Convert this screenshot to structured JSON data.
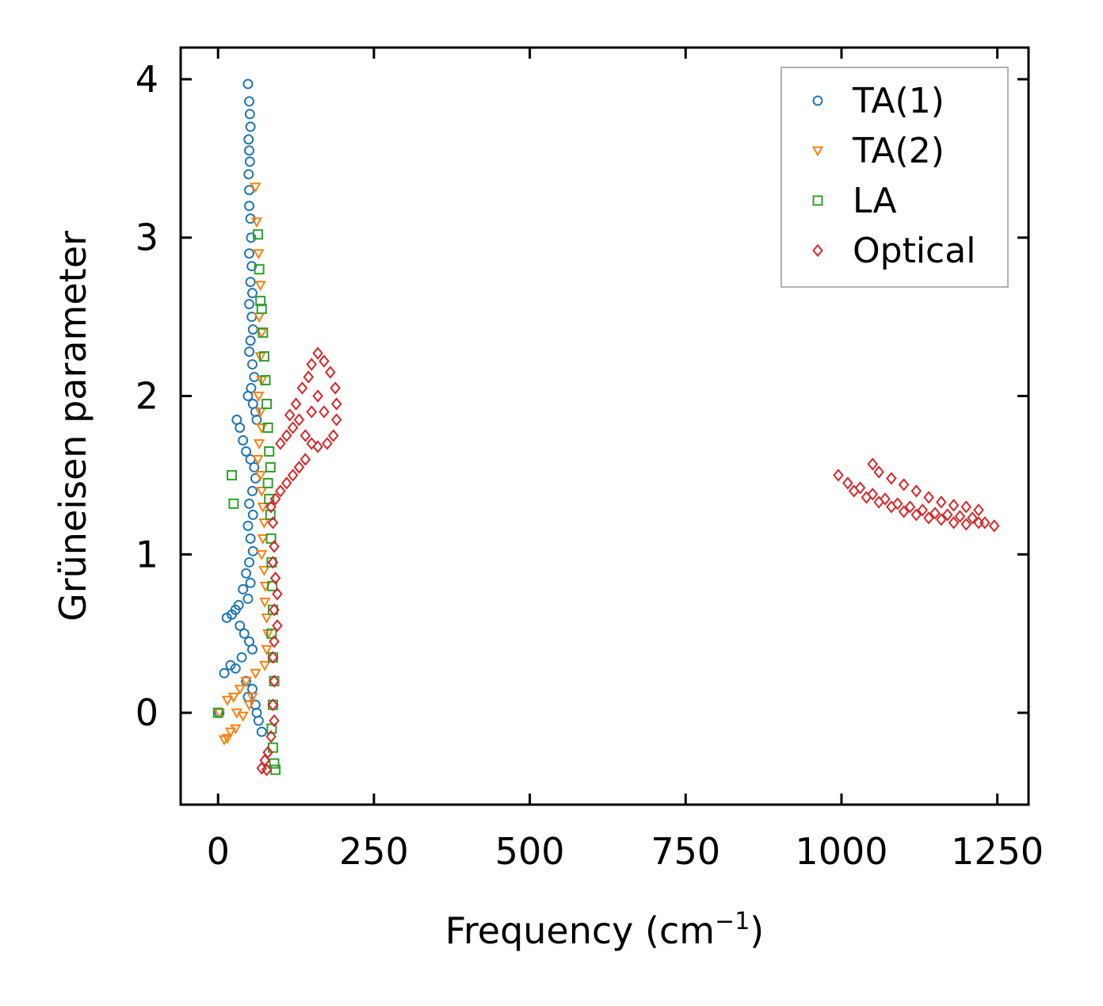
{
  "chart_data": {
    "type": "scatter",
    "title": "",
    "xlabel": "Frequency (cm",
    "xlabel_sup": "−1",
    "xlabel_end": ")",
    "ylabel": "Grüneisen parameter",
    "xlim": [
      -60,
      1300
    ],
    "ylim": [
      -0.58,
      4.2
    ],
    "xticks": [
      0,
      250,
      500,
      750,
      1000,
      1250
    ],
    "xtick_labels": [
      "0",
      "250",
      "500",
      "750",
      "1000",
      "1250"
    ],
    "yticks": [
      0,
      1,
      2,
      3,
      4
    ],
    "ytick_labels": [
      "0",
      "1",
      "2",
      "3",
      "4"
    ],
    "grid": false,
    "legend_position": "top-right",
    "series": [
      {
        "name": "TA(1)",
        "marker": "circle",
        "color": "#1f77b4",
        "points": [
          [
            48,
            3.97
          ],
          [
            50,
            3.86
          ],
          [
            51,
            3.78
          ],
          [
            52,
            3.7
          ],
          [
            49,
            3.62
          ],
          [
            50,
            3.55
          ],
          [
            51,
            3.48
          ],
          [
            49,
            3.4
          ],
          [
            50,
            3.3
          ],
          [
            50,
            3.2
          ],
          [
            52,
            3.12
          ],
          [
            53,
            3.0
          ],
          [
            50,
            2.9
          ],
          [
            54,
            2.82
          ],
          [
            52,
            2.72
          ],
          [
            55,
            2.65
          ],
          [
            50,
            2.58
          ],
          [
            54,
            2.5
          ],
          [
            56,
            2.42
          ],
          [
            52,
            2.35
          ],
          [
            50,
            2.28
          ],
          [
            55,
            2.2
          ],
          [
            58,
            2.12
          ],
          [
            53,
            2.05
          ],
          [
            48,
            2.0
          ],
          [
            56,
            1.95
          ],
          [
            60,
            1.9
          ],
          [
            62,
            1.85
          ],
          [
            30,
            1.85
          ],
          [
            35,
            1.8
          ],
          [
            40,
            1.72
          ],
          [
            45,
            1.65
          ],
          [
            52,
            1.6
          ],
          [
            58,
            1.55
          ],
          [
            60,
            1.48
          ],
          [
            55,
            1.4
          ],
          [
            50,
            1.32
          ],
          [
            56,
            1.25
          ],
          [
            48,
            1.18
          ],
          [
            52,
            1.1
          ],
          [
            56,
            1.02
          ],
          [
            50,
            0.95
          ],
          [
            45,
            0.88
          ],
          [
            52,
            0.82
          ],
          [
            40,
            0.78
          ],
          [
            48,
            0.72
          ],
          [
            33,
            0.68
          ],
          [
            28,
            0.65
          ],
          [
            22,
            0.62
          ],
          [
            14,
            0.6
          ],
          [
            35,
            0.55
          ],
          [
            42,
            0.5
          ],
          [
            50,
            0.45
          ],
          [
            55,
            0.4
          ],
          [
            38,
            0.35
          ],
          [
            20,
            0.3
          ],
          [
            28,
            0.28
          ],
          [
            10,
            0.25
          ],
          [
            45,
            0.2
          ],
          [
            55,
            0.15
          ],
          [
            48,
            0.1
          ],
          [
            60,
            0.05
          ],
          [
            62,
            0.0
          ],
          [
            65,
            -0.05
          ],
          [
            70,
            -0.12
          ],
          [
            2,
            0.0
          ]
        ]
      },
      {
        "name": "TA(2)",
        "marker": "triangle-down",
        "color": "#ff7f0e",
        "points": [
          [
            60,
            3.32
          ],
          [
            62,
            3.1
          ],
          [
            65,
            2.9
          ],
          [
            68,
            2.7
          ],
          [
            66,
            2.5
          ],
          [
            70,
            2.4
          ],
          [
            68,
            2.25
          ],
          [
            70,
            2.1
          ],
          [
            65,
            2.0
          ],
          [
            68,
            1.9
          ],
          [
            70,
            1.8
          ],
          [
            66,
            1.7
          ],
          [
            64,
            1.6
          ],
          [
            68,
            1.5
          ],
          [
            70,
            1.4
          ],
          [
            72,
            1.3
          ],
          [
            74,
            1.2
          ],
          [
            72,
            1.1
          ],
          [
            70,
            1.0
          ],
          [
            74,
            0.9
          ],
          [
            76,
            0.8
          ],
          [
            75,
            0.7
          ],
          [
            78,
            0.6
          ],
          [
            80,
            0.5
          ],
          [
            78,
            0.4
          ],
          [
            75,
            0.3
          ],
          [
            60,
            0.25
          ],
          [
            45,
            0.2
          ],
          [
            35,
            0.15
          ],
          [
            25,
            0.1
          ],
          [
            15,
            0.08
          ],
          [
            30,
            0.0
          ],
          [
            40,
            -0.02
          ],
          [
            50,
            0.05
          ],
          [
            55,
            0.1
          ],
          [
            20,
            -0.12
          ],
          [
            15,
            -0.16
          ],
          [
            10,
            -0.17
          ],
          [
            28,
            -0.1
          ],
          [
            2,
            0.0
          ]
        ]
      },
      {
        "name": "LA",
        "marker": "square",
        "color": "#2ca02c",
        "points": [
          [
            64,
            3.02
          ],
          [
            66,
            2.8
          ],
          [
            68,
            2.6
          ],
          [
            70,
            2.55
          ],
          [
            72,
            2.4
          ],
          [
            74,
            2.25
          ],
          [
            76,
            2.1
          ],
          [
            78,
            1.95
          ],
          [
            80,
            1.8
          ],
          [
            82,
            1.65
          ],
          [
            84,
            1.55
          ],
          [
            80,
            1.45
          ],
          [
            82,
            1.35
          ],
          [
            84,
            1.25
          ],
          [
            85,
            1.1
          ],
          [
            86,
            0.95
          ],
          [
            87,
            0.8
          ],
          [
            88,
            0.65
          ],
          [
            86,
            0.5
          ],
          [
            88,
            0.35
          ],
          [
            90,
            0.2
          ],
          [
            88,
            0.05
          ],
          [
            86,
            -0.1
          ],
          [
            88,
            -0.22
          ],
          [
            90,
            -0.32
          ],
          [
            92,
            -0.36
          ],
          [
            22,
            1.5
          ],
          [
            25,
            1.32
          ],
          [
            0,
            0.0
          ]
        ]
      },
      {
        "name": "Optical",
        "marker": "diamond",
        "color": "#d62728",
        "points": [
          [
            160,
            2.27
          ],
          [
            170,
            2.22
          ],
          [
            180,
            2.15
          ],
          [
            188,
            2.05
          ],
          [
            190,
            1.95
          ],
          [
            190,
            1.85
          ],
          [
            185,
            1.75
          ],
          [
            175,
            1.7
          ],
          [
            160,
            1.68
          ],
          [
            150,
            1.7
          ],
          [
            140,
            1.75
          ],
          [
            160,
            2.0
          ],
          [
            150,
            1.9
          ],
          [
            170,
            1.9
          ],
          [
            130,
            1.85
          ],
          [
            120,
            1.8
          ],
          [
            110,
            1.75
          ],
          [
            100,
            1.7
          ],
          [
            115,
            1.88
          ],
          [
            125,
            1.95
          ],
          [
            135,
            2.05
          ],
          [
            145,
            2.12
          ],
          [
            150,
            2.2
          ],
          [
            140,
            1.6
          ],
          [
            130,
            1.55
          ],
          [
            120,
            1.5
          ],
          [
            110,
            1.45
          ],
          [
            100,
            1.4
          ],
          [
            92,
            1.35
          ],
          [
            85,
            1.3
          ],
          [
            88,
            1.2
          ],
          [
            90,
            1.05
          ],
          [
            88,
            0.95
          ],
          [
            92,
            0.85
          ],
          [
            95,
            0.75
          ],
          [
            90,
            0.65
          ],
          [
            95,
            0.55
          ],
          [
            90,
            0.45
          ],
          [
            88,
            0.35
          ],
          [
            90,
            0.2
          ],
          [
            88,
            0.05
          ],
          [
            90,
            -0.05
          ],
          [
            85,
            -0.15
          ],
          [
            80,
            -0.25
          ],
          [
            75,
            -0.3
          ],
          [
            70,
            -0.35
          ],
          [
            78,
            -0.36
          ],
          [
            995,
            1.5
          ],
          [
            1010,
            1.45
          ],
          [
            1030,
            1.42
          ],
          [
            1050,
            1.38
          ],
          [
            1070,
            1.35
          ],
          [
            1090,
            1.32
          ],
          [
            1110,
            1.3
          ],
          [
            1130,
            1.28
          ],
          [
            1150,
            1.26
          ],
          [
            1170,
            1.25
          ],
          [
            1190,
            1.24
          ],
          [
            1210,
            1.23
          ],
          [
            1230,
            1.2
          ],
          [
            1245,
            1.18
          ],
          [
            1050,
            1.57
          ],
          [
            1060,
            1.52
          ],
          [
            1080,
            1.48
          ],
          [
            1100,
            1.44
          ],
          [
            1120,
            1.4
          ],
          [
            1140,
            1.36
          ],
          [
            1160,
            1.33
          ],
          [
            1180,
            1.31
          ],
          [
            1200,
            1.3
          ],
          [
            1220,
            1.28
          ],
          [
            1020,
            1.4
          ],
          [
            1040,
            1.36
          ],
          [
            1060,
            1.33
          ],
          [
            1080,
            1.3
          ],
          [
            1100,
            1.27
          ],
          [
            1120,
            1.25
          ],
          [
            1140,
            1.23
          ],
          [
            1160,
            1.22
          ],
          [
            1180,
            1.2
          ],
          [
            1200,
            1.19
          ],
          [
            1220,
            1.2
          ]
        ]
      }
    ]
  }
}
